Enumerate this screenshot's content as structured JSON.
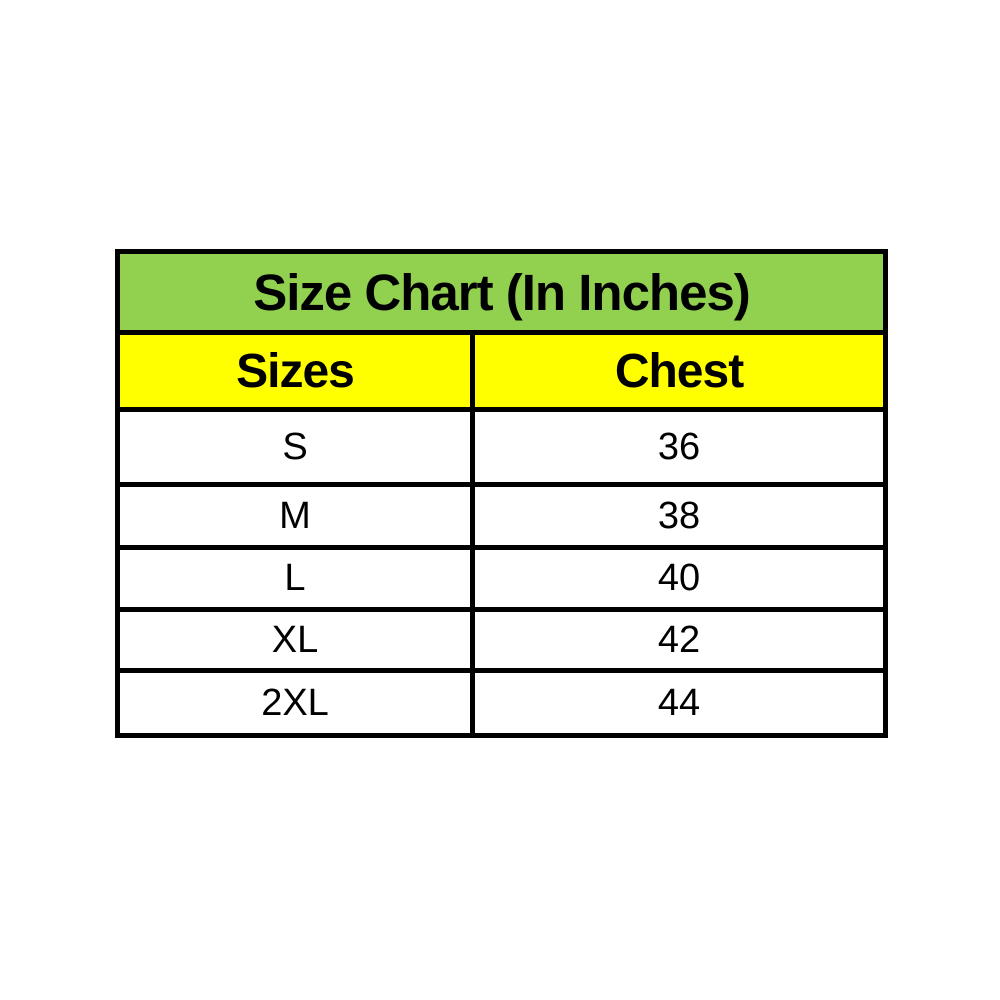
{
  "chart_data": {
    "type": "table",
    "title": "Size Chart (In Inches)",
    "columns": [
      "Sizes",
      "Chest"
    ],
    "rows": [
      [
        "S",
        "36"
      ],
      [
        "M",
        "38"
      ],
      [
        "L",
        "40"
      ],
      [
        "XL",
        "42"
      ],
      [
        "2XL",
        "44"
      ]
    ]
  },
  "colors": {
    "title_bg": "#92d050",
    "header_bg": "#ffff00",
    "row_bg": "#ffffff",
    "border": "#000000",
    "text": "#000000"
  }
}
